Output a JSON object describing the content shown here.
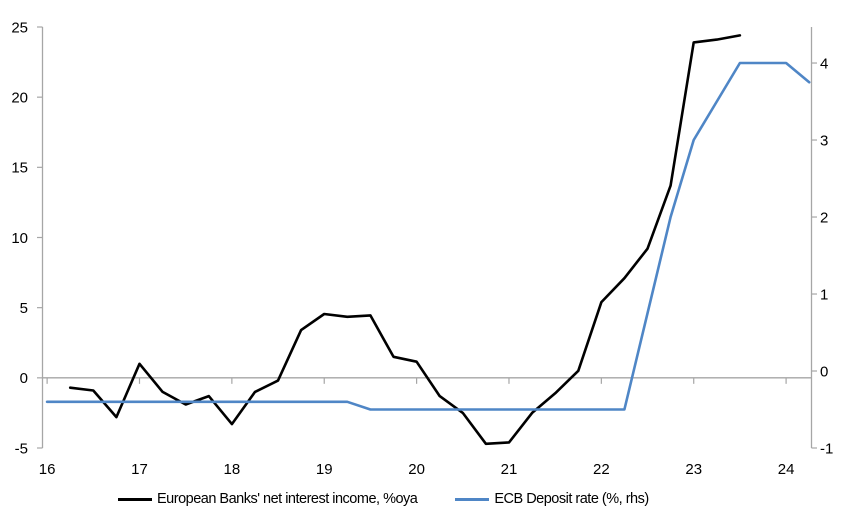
{
  "chart_data": {
    "type": "line",
    "title": "",
    "xlabel": "",
    "ylabel_left": "",
    "ylabel_right": "",
    "grid": "zero-line-only",
    "legend_position": "bottom",
    "colors": {
      "series_nii": "#000000",
      "series_ecb": "#4f86c6",
      "axis_line": "#a6a6a6",
      "zero_line": "#a6a6a6",
      "text": "#000000",
      "background": "#ffffff"
    },
    "x_axis": {
      "range": [
        15.95,
        24.275
      ],
      "ticks": [
        16,
        17,
        18,
        19,
        20,
        21,
        22,
        23,
        24
      ],
      "tick_labels": [
        "16",
        "17",
        "18",
        "19",
        "20",
        "21",
        "22",
        "23",
        "24"
      ]
    },
    "left_axis": {
      "range": [
        -5,
        25
      ],
      "ticks": [
        -5,
        0,
        5,
        10,
        15,
        20,
        25
      ],
      "tick_labels": [
        "-5",
        "0",
        "5",
        "10",
        "15",
        "20",
        "25"
      ]
    },
    "right_axis": {
      "range": [
        -1,
        4.468
      ],
      "ticks": [
        -1,
        0,
        1,
        2,
        3,
        4
      ],
      "tick_labels": [
        "-1",
        "0",
        "1",
        "2",
        "3",
        "4"
      ]
    },
    "series": [
      {
        "name": "European Banks' net interest income, %oya",
        "axis": "left",
        "color": "#000000",
        "x": [
          16.25,
          16.5,
          16.75,
          17.0,
          17.25,
          17.5,
          17.75,
          18.0,
          18.25,
          18.5,
          18.75,
          19.0,
          19.25,
          19.5,
          19.75,
          20.0,
          20.25,
          20.5,
          20.75,
          21.0,
          21.25,
          21.5,
          21.75,
          22.0,
          22.25,
          22.5,
          22.75,
          23.0,
          23.25,
          23.5
        ],
        "values": [
          -0.7,
          -0.9,
          -2.8,
          1.0,
          -1.0,
          -1.9,
          -1.3,
          -3.3,
          -1.0,
          -0.2,
          3.4,
          4.55,
          4.35,
          4.45,
          1.5,
          1.15,
          -1.3,
          -2.5,
          -4.7,
          -4.6,
          -2.5,
          -1.1,
          0.5,
          5.4,
          7.1,
          9.2,
          13.7,
          23.9,
          24.1,
          24.4
        ]
      },
      {
        "name": "ECB Deposit rate (%, rhs)",
        "axis": "right",
        "color": "#4f86c6",
        "x": [
          16.0,
          16.25,
          16.5,
          16.75,
          17.0,
          17.25,
          17.5,
          17.75,
          18.0,
          18.25,
          18.5,
          18.75,
          19.0,
          19.25,
          19.5,
          19.75,
          20.0,
          20.25,
          20.5,
          20.75,
          21.0,
          21.25,
          21.5,
          21.75,
          22.0,
          22.25,
          22.5,
          22.75,
          23.0,
          23.25,
          23.5,
          23.75,
          24.0,
          24.25
        ],
        "values": [
          -0.4,
          -0.4,
          -0.4,
          -0.4,
          -0.4,
          -0.4,
          -0.4,
          -0.4,
          -0.4,
          -0.4,
          -0.4,
          -0.4,
          -0.4,
          -0.4,
          -0.5,
          -0.5,
          -0.5,
          -0.5,
          -0.5,
          -0.5,
          -0.5,
          -0.5,
          -0.5,
          -0.5,
          -0.5,
          -0.5,
          0.75,
          2.0,
          3.0,
          3.5,
          4.0,
          4.0,
          4.0,
          3.75
        ]
      }
    ],
    "legend": [
      "European Banks' net interest income, %oya",
      "ECB Deposit rate (%, rhs)"
    ]
  }
}
